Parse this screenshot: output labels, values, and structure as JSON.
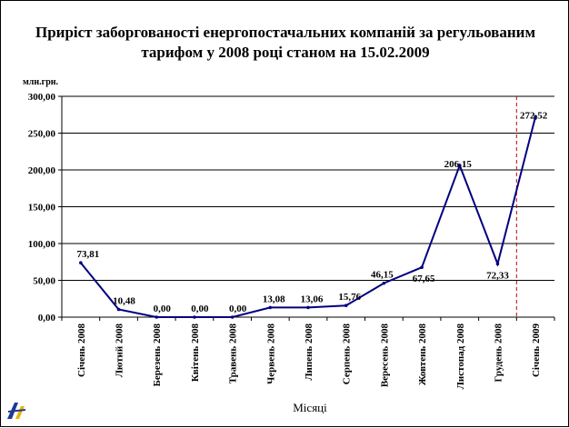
{
  "chart_data": {
    "type": "line",
    "title": "Приріст заборгованості енергопостачальних компаній за регульованим тарифом у 2008 році станом на 15.02.2009",
    "ylabel": "млн.грн.",
    "xlabel": "Місяці",
    "categories": [
      "Січень 2008",
      "Лютий 2008",
      "Березень 2008",
      "Квітень 2008",
      "Травень 2008",
      "Червень 2008",
      "Липень 2008",
      "Серпень 2008",
      "Вересень 2008",
      "Жовтень 2008",
      "Листопад 2008",
      "Грудень 2008",
      "Січень 2009"
    ],
    "values": [
      73.81,
      10.48,
      0.0,
      0.0,
      0.0,
      13.08,
      13.06,
      15.76,
      46.15,
      67.65,
      206.15,
      72.33,
      272.52
    ],
    "value_labels": [
      "73,81",
      "10,48",
      "0,00",
      "0,00",
      "0,00",
      "13,08",
      "13,06",
      "15,76",
      "46,15",
      "67,65",
      "206,15",
      "72,33",
      "272,52"
    ],
    "ylim": [
      0,
      300
    ],
    "yticks": [
      "0,00",
      "50,00",
      "100,00",
      "150,00",
      "200,00",
      "250,00",
      "300,00"
    ],
    "grid": true,
    "line_color": "#000080",
    "marker_line": {
      "between": [
        "Грудень 2008",
        "Січень 2009"
      ],
      "color": "#c00000",
      "style": "dashed"
    }
  }
}
